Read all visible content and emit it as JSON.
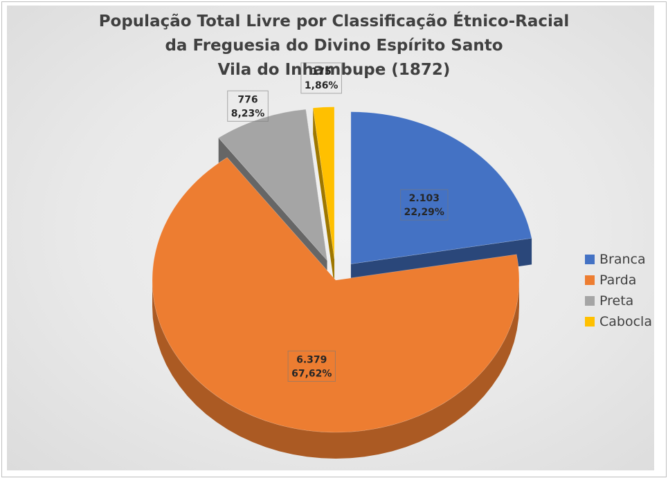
{
  "chart_data": {
    "type": "pie",
    "title_lines": [
      "População Total Livre por Classificação Étnico-Racial",
      "da Freguesia do Divino Espírito Santo",
      "Vila do Inhambupe (1872)"
    ],
    "slices": [
      {
        "name": "Branca",
        "value": 2103,
        "value_label": "2.103",
        "percent_label": "22,29%",
        "percent": 22.29,
        "color": "#4472c4",
        "exploded": true
      },
      {
        "name": "Parda",
        "value": 6379,
        "value_label": "6.379",
        "percent_label": "67,62%",
        "percent": 67.62,
        "color": "#ed7d31",
        "exploded": false
      },
      {
        "name": "Preta",
        "value": 776,
        "value_label": "776",
        "percent_label": "8,23%",
        "percent": 8.23,
        "color": "#a5a5a5",
        "exploded": true
      },
      {
        "name": "Cabocla",
        "value": 175,
        "value_label": "175",
        "percent_label": "1,86%",
        "percent": 1.86,
        "color": "#ffc000",
        "exploded": true
      }
    ],
    "style": "3d-exploded",
    "legend_position": "right"
  }
}
